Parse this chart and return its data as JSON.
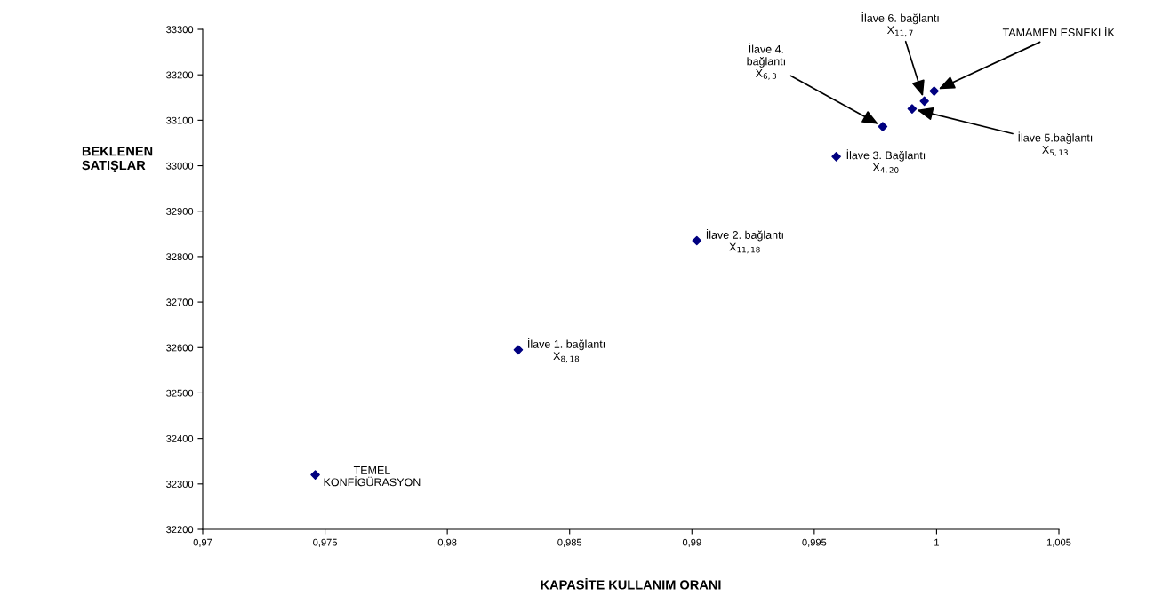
{
  "chart_data": {
    "type": "scatter",
    "xlabel": "KAPASİTE KULLANIM ORANI",
    "ylabel": "BEKLENEN\nSATIŞLAR",
    "x": [
      0.9746,
      0.9829,
      0.9902,
      0.9959,
      0.9978,
      0.999,
      0.9995,
      0.9999
    ],
    "series": [
      {
        "color": "#000080",
        "values": [
          32320,
          32595,
          32835,
          33020,
          33086,
          33125,
          33142,
          33164
        ]
      }
    ],
    "marker": "diamond",
    "grid": false,
    "legend": false,
    "xlim": [
      0.97,
      1.005
    ],
    "xticks": [
      {
        "value": 0.97,
        "label": "0,97"
      },
      {
        "value": 0.975,
        "label": "0,975"
      },
      {
        "value": 0.98,
        "label": "0,98"
      },
      {
        "value": 0.985,
        "label": "0,985"
      },
      {
        "value": 0.99,
        "label": "0,99"
      },
      {
        "value": 0.995,
        "label": "0,995"
      },
      {
        "value": 1,
        "label": "1"
      },
      {
        "value": 1.005,
        "label": "1,005"
      }
    ],
    "ylim": [
      32200,
      33300
    ],
    "yticks": [
      32200,
      32300,
      32400,
      32500,
      32600,
      32700,
      32800,
      32900,
      33000,
      33100,
      33200,
      33300
    ],
    "annotations": [
      {
        "text": "TEMEL\nKONFİGÜRASYON",
        "x": 0.9746,
        "y": 32320
      },
      {
        "text": "İlave 1. bağlantı\nX$_{8,18}$",
        "x": 0.9829,
        "y": 32595
      },
      {
        "text": "İlave 2. bağlantı\nX$_{11,18}$",
        "x": 0.9902,
        "y": 32835
      },
      {
        "text": "İlave 3. Bağlantı\nX$_{4,20}$",
        "x": 0.9959,
        "y": 33020
      },
      {
        "text": "İlave 4.\nbağlantı\nX$_{6,3}$",
        "x": 0.9978,
        "y": 33086
      },
      {
        "text": "İlave 5.bağlantı\nX$_{5,13}$",
        "x": 0.999,
        "y": 33125
      },
      {
        "text": "İlave 6. bağlantı\nX$_{11,7}$",
        "x": 0.9995,
        "y": 33142
      },
      {
        "text": "TAMAMEN ESNEKLİK",
        "x": 0.9999,
        "y": 33164
      }
    ]
  }
}
